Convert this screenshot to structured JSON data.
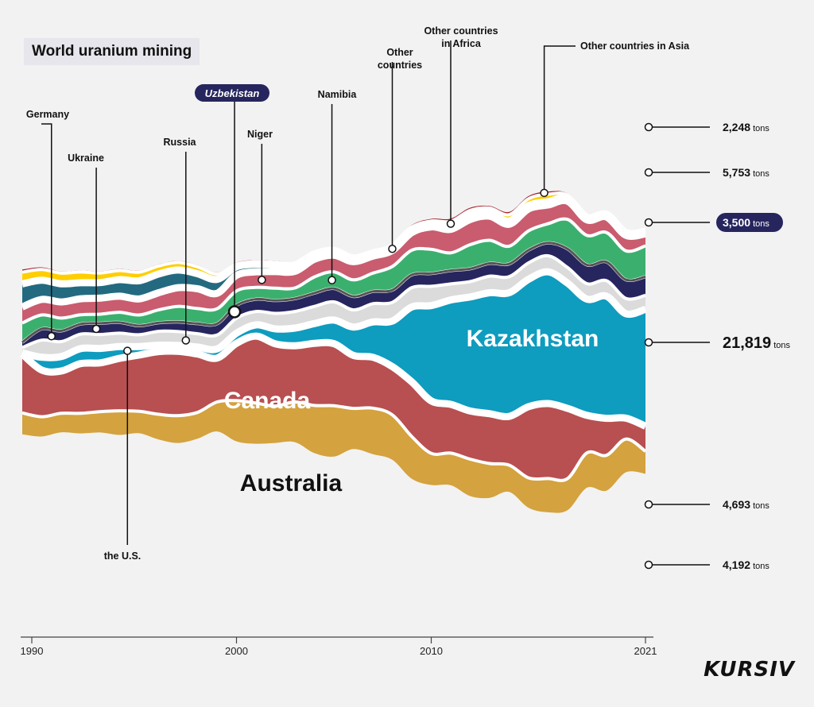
{
  "page": {
    "title": "World uranium mining",
    "brand": "KURSIV"
  },
  "colors": {
    "australia": "#d4a23e",
    "canada": "#b84f50",
    "kazakhstan": "#0e9cbf",
    "russia": "#dbdbdb",
    "uzbekistan": "#26255e",
    "namibia": "#3bb06e",
    "niger": "#c95c6e",
    "other": "#236a80",
    "africa": "#ffce00",
    "asia": "#a71d2a",
    "separator": "#ffffff",
    "text": "#111111",
    "highlight": "#26255e"
  },
  "chart_data": {
    "type": "area",
    "stacked": true,
    "title": "World uranium mining",
    "xlabel": "",
    "ylabel": "",
    "xticks": [
      1990,
      2000,
      2010,
      2021
    ],
    "x": [
      1989,
      1990,
      1991,
      1992,
      1993,
      1994,
      1995,
      1996,
      1997,
      1998,
      1999,
      2000,
      2001,
      2002,
      2003,
      2004,
      2005,
      2006,
      2007,
      2008,
      2009,
      2010,
      2011,
      2012,
      2013,
      2014,
      2015,
      2016,
      2017,
      2018,
      2019,
      2020,
      2021
    ],
    "unit": "tons",
    "series": [
      {
        "name": "Australia",
        "key": "australia",
        "label": "Australia",
        "final_value": "4,192",
        "values": [
          4000,
          3700,
          3550,
          3750,
          3900,
          4500,
          4100,
          4700,
          5100,
          4900,
          5500,
          7600,
          7600,
          6900,
          7500,
          8900,
          9500,
          7600,
          8600,
          8400,
          7900,
          5900,
          6000,
          6900,
          6400,
          5000,
          5600,
          6300,
          5900,
          6500,
          6600,
          6200,
          4192
        ]
      },
      {
        "name": "Canada",
        "key": "canada",
        "label": "Canada",
        "final_value": "4,693",
        "values": [
          11000,
          8700,
          7900,
          9300,
          9100,
          9800,
          10500,
          11700,
          12000,
          10900,
          8200,
          10700,
          12500,
          11600,
          10500,
          11600,
          11600,
          9900,
          9500,
          9000,
          10200,
          9800,
          9100,
          9000,
          9300,
          9100,
          13300,
          14000,
          13100,
          7000,
          6900,
          3900,
          4693
        ]
      },
      {
        "name": "Kazakhstan",
        "key": "kazakhstan",
        "label": "Kazakhstan",
        "final_value": "21,819",
        "values": [
          200,
          2400,
          2700,
          2800,
          2700,
          2200,
          1600,
          1200,
          1100,
          1300,
          1700,
          1900,
          2100,
          2800,
          3300,
          3700,
          4400,
          5300,
          6600,
          8500,
          14000,
          17800,
          19500,
          21300,
          22600,
          23100,
          23800,
          24600,
          23400,
          21700,
          22800,
          19500,
          21819
        ]
      },
      {
        "name": "Russia",
        "key": "russia",
        "label": "Russia",
        "final_value": "",
        "values": [
          1000,
          3200,
          2800,
          2700,
          2600,
          2500,
          2200,
          2600,
          2600,
          2500,
          2600,
          2800,
          2500,
          2900,
          3100,
          3200,
          3400,
          3200,
          3400,
          3500,
          3600,
          3600,
          2990,
          2870,
          3100,
          2990,
          3050,
          3000,
          2900,
          2900,
          2900,
          2850,
          2600
        ]
      },
      {
        "name": "Uzbekistan",
        "key": "uzbekistan",
        "label": "Uzbekistan",
        "final_value": "3,500",
        "highlight": true,
        "values": [
          1000,
          2100,
          2000,
          1900,
          2100,
          2000,
          1700,
          1600,
          1800,
          1900,
          2100,
          2400,
          2300,
          2400,
          2400,
          2500,
          2500,
          2500,
          2300,
          2300,
          2400,
          2400,
          2500,
          2400,
          2400,
          2400,
          2400,
          2400,
          3500,
          3500,
          3500,
          3500,
          3500
        ]
      },
      {
        "name": "Namibia",
        "key": "namibia",
        "label": "Namibia",
        "final_value": "5,753",
        "values": [
          3600,
          2600,
          2400,
          1700,
          1700,
          1900,
          2000,
          2400,
          2900,
          2800,
          2800,
          2700,
          2200,
          2300,
          2000,
          3000,
          3100,
          3100,
          3400,
          4400,
          4600,
          4500,
          3300,
          4500,
          4300,
          3300,
          3600,
          3600,
          5500,
          5500,
          5500,
          5400,
          5753
        ]
      },
      {
        "name": "Niger",
        "key": "niger",
        "label": "Niger",
        "final_value": "2,248",
        "values": [
          3000,
          2900,
          3000,
          3000,
          3000,
          3000,
          3000,
          3200,
          3500,
          3700,
          2900,
          2900,
          2900,
          3100,
          3100,
          3300,
          3100,
          3400,
          3200,
          3000,
          3300,
          4200,
          4400,
          4700,
          4500,
          4100,
          4100,
          3500,
          3400,
          2900,
          2900,
          2900,
          2248
        ]
      },
      {
        "name": "Other countries",
        "key": "other",
        "label": "Other countries",
        "final_value": "",
        "values": [
          4300,
          3600,
          3400,
          3000,
          2900,
          3100,
          3400,
          3500,
          3300,
          2800,
          2600,
          1600,
          1400,
          1300,
          1200,
          1000,
          900,
          700,
          600,
          600,
          600,
          500,
          600,
          700,
          600,
          600,
          600,
          600,
          500,
          500,
          500,
          500,
          500
        ]
      },
      {
        "name": "Other countries in Africa",
        "key": "africa",
        "label": "Other countries in Africa",
        "final_value": "",
        "values": [
          2200,
          2000,
          2000,
          2000,
          1800,
          1700,
          1600,
          1500,
          1400,
          1300,
          1000,
          500,
          500,
          400,
          300,
          300,
          300,
          300,
          300,
          300,
          400,
          600,
          900,
          1000,
          900,
          1200,
          1300,
          1400,
          600,
          0,
          0,
          0,
          0
        ]
      },
      {
        "name": "Other countries in Asia",
        "key": "asia",
        "label": "Other countries in Asia",
        "final_value": "",
        "values": [
          500,
          400,
          300,
          300,
          300,
          300,
          300,
          300,
          300,
          300,
          300,
          300,
          300,
          300,
          300,
          300,
          300,
          300,
          300,
          300,
          400,
          400,
          500,
          500,
          400,
          500,
          500,
          500,
          300,
          200,
          200,
          200,
          200
        ]
      }
    ],
    "annotations": [
      {
        "key": "germany",
        "text": "Germany",
        "year": 1990.5,
        "series": "uzbekistan"
      },
      {
        "key": "ukraine",
        "text": "Ukraine",
        "year": 1992.8,
        "series": "uzbekistan"
      },
      {
        "key": "russia",
        "text": "Russia",
        "year": 1997.4,
        "series": "russia"
      },
      {
        "key": "uzbekistan",
        "text": "Uzbekistan",
        "year": 1999.9,
        "series": "uzbekistan",
        "highlight": true
      },
      {
        "key": "niger",
        "text": "Niger",
        "year": 2001.3,
        "series": "niger"
      },
      {
        "key": "namibia",
        "text": "Namibia",
        "year": 2004.9,
        "series": "namibia"
      },
      {
        "key": "other",
        "text": "Other countries",
        "year": 2008.0,
        "series": "other"
      },
      {
        "key": "africa",
        "text": "Other countries in Africa",
        "year": 2011.0,
        "series": "africa"
      },
      {
        "key": "asia",
        "text": "Other countries in Asia",
        "year": 2015.8,
        "series": "asia"
      },
      {
        "key": "us",
        "text": "the U.S.",
        "year": 1994.4,
        "series": "kazakhstan"
      }
    ],
    "legend": "inline labels"
  }
}
